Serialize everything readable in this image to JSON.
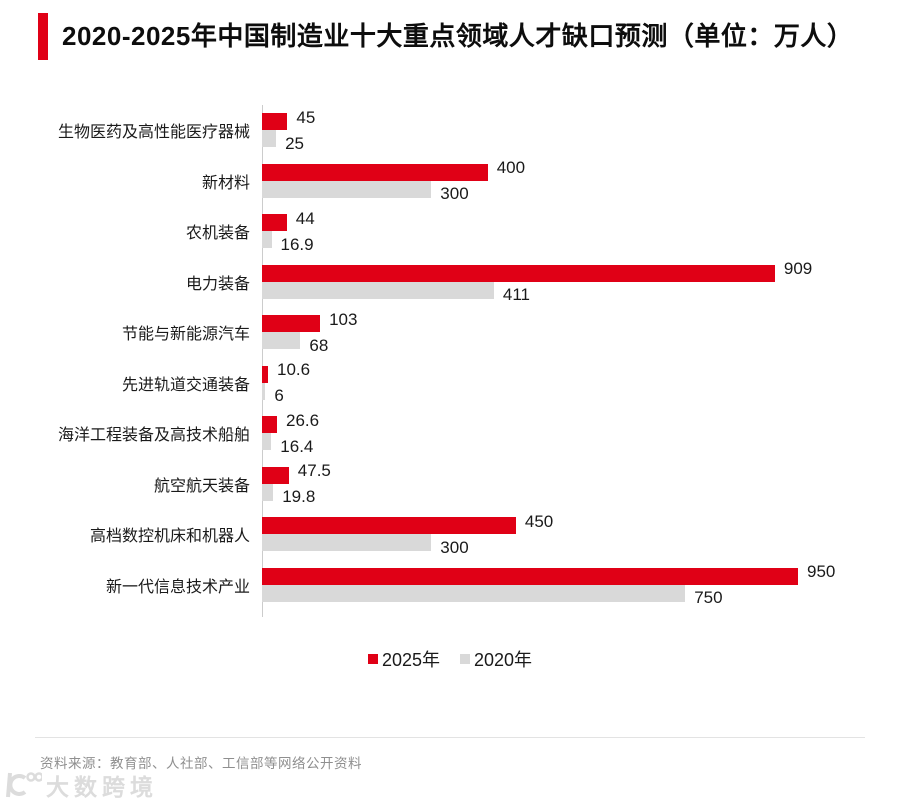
{
  "title": {
    "text": "2020-2025年中国制造业十大重点领域人才缺口预测（单位：万人）"
  },
  "chart_data": {
    "type": "bar",
    "orientation": "horizontal",
    "title": "2020-2025年中国制造业十大重点领域人才缺口预测",
    "unit": "万人",
    "categories": [
      "生物医药及高性能医疗器械",
      "新材料",
      "农机装备",
      "电力装备",
      "节能与新能源汽车",
      "先进轨道交通装备",
      "海洋工程装备及高技术船舶",
      "航空航天装备",
      "高档数控机床和机器人",
      "新一代信息技术产业"
    ],
    "series": [
      {
        "name": "2025年",
        "color": "#e00016",
        "values": [
          45,
          400,
          44,
          909,
          103,
          10.6,
          26.6,
          47.5,
          450,
          950
        ]
      },
      {
        "name": "2020年",
        "color": "#d9d9d9",
        "values": [
          25,
          300,
          16.9,
          411,
          68,
          6,
          16.4,
          19.8,
          300,
          750
        ]
      }
    ],
    "xmax": 950,
    "grid": false,
    "value_labels": true,
    "legend_position": "bottom"
  },
  "footer": {
    "source_text": "资料来源：教育部、人社部、工信部等网络公开资料"
  },
  "watermark": {
    "text": "大数跨境"
  },
  "colors": {
    "accent_red": "#e00016",
    "bar_gray": "#d9d9d9",
    "axis_line": "#cccccc",
    "text_dark": "#1a1a1a",
    "source_gray": "#8f8f8f",
    "watermark_gray": "#dcdcdc"
  }
}
